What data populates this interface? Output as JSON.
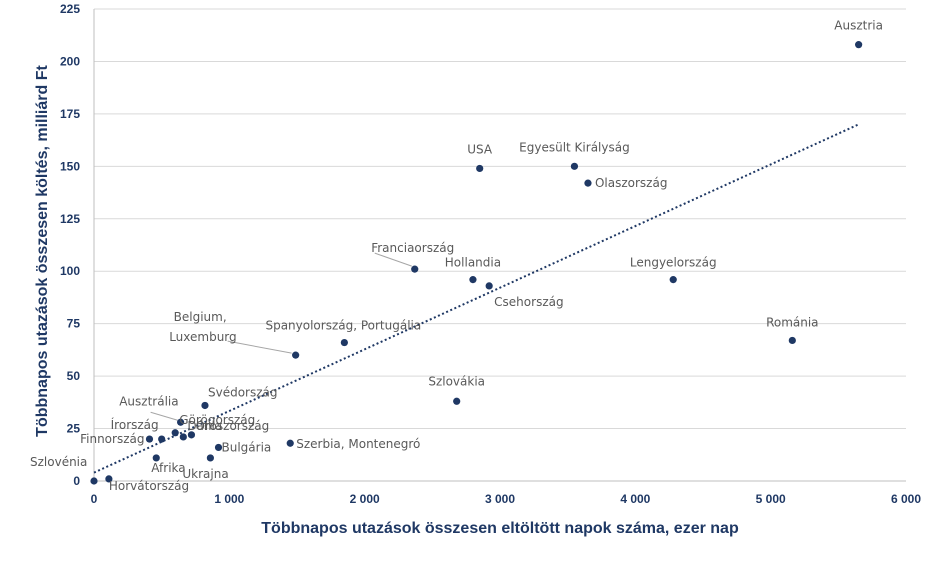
{
  "chart_data": {
    "type": "scatter",
    "title": "",
    "xlabel": "Többnapos utazások összesen eltöltött napok száma, ezer nap",
    "ylabel": "Többnapos utazások összesen költés, milliárd Ft",
    "xlim": [
      0,
      6000
    ],
    "ylim": [
      0,
      225
    ],
    "x_ticks": [
      0,
      1000,
      2000,
      3000,
      4000,
      5000,
      6000
    ],
    "x_tick_labels": [
      "0",
      "1 000",
      "2 000",
      "3 000",
      "4 000",
      "5 000",
      "6 000"
    ],
    "y_ticks": [
      0,
      25,
      50,
      75,
      100,
      125,
      150,
      175,
      200,
      225
    ],
    "y_tick_labels": [
      "0",
      "25",
      "50",
      "75",
      "100",
      "125",
      "150",
      "175",
      "200",
      "225"
    ],
    "grid": "horizontal",
    "point_color": "#1f3864",
    "trendline": {
      "type": "linear",
      "style": "dotted",
      "x": [
        0,
        5650
      ],
      "y": [
        4,
        170
      ]
    },
    "points": [
      {
        "label": "Ausztria",
        "x": 5650,
        "y": 208
      },
      {
        "label": "USA",
        "x": 2850,
        "y": 149
      },
      {
        "label": "Egyesült Királyság",
        "x": 3550,
        "y": 150
      },
      {
        "label": "Olaszország",
        "x": 3650,
        "y": 142
      },
      {
        "label": "Franciaország",
        "x": 2370,
        "y": 101
      },
      {
        "label": "Hollandia",
        "x": 2800,
        "y": 96
      },
      {
        "label": "Csehország",
        "x": 2920,
        "y": 93
      },
      {
        "label": "Lengyelország",
        "x": 4280,
        "y": 96
      },
      {
        "label": "Románia",
        "x": 5160,
        "y": 67
      },
      {
        "label": "Belgium, Luxemburg",
        "x": 1490,
        "y": 60
      },
      {
        "label": "Spanyolország, Portugália",
        "x": 1850,
        "y": 66
      },
      {
        "label": "Szlovákia",
        "x": 2680,
        "y": 38
      },
      {
        "label": "Svédország",
        "x": 820,
        "y": 36
      },
      {
        "label": "Ausztrália",
        "x": 640,
        "y": 28
      },
      {
        "label": "Görögország",
        "x": 600,
        "y": 23
      },
      {
        "label": "Oroszország",
        "x": 720,
        "y": 22
      },
      {
        "label": "Írország",
        "x": 500,
        "y": 20
      },
      {
        "label": "Finnország",
        "x": 410,
        "y": 20
      },
      {
        "label": "Bulgária",
        "x": 920,
        "y": 16
      },
      {
        "label": "Szerbia, Montenegró",
        "x": 1450,
        "y": 18
      },
      {
        "label": "Dánia",
        "x": 660,
        "y": 21
      },
      {
        "label": "Afrika",
        "x": 460,
        "y": 11
      },
      {
        "label": "Ukrajna",
        "x": 860,
        "y": 11
      },
      {
        "label": "Szlovénia",
        "x": 0,
        "y": 0
      },
      {
        "label": "Horvátország",
        "x": 110,
        "y": 1
      }
    ]
  }
}
